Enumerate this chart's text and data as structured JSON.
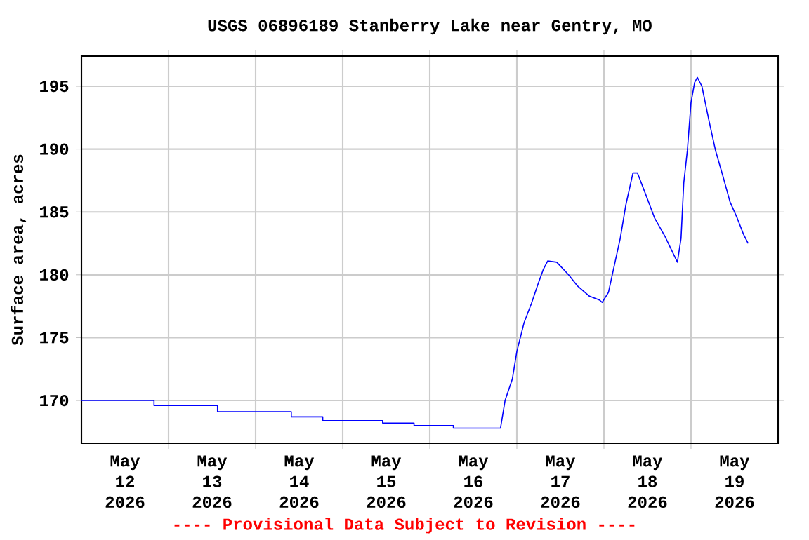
{
  "chart_data": {
    "type": "line",
    "title": "USGS 06896189 Stanberry Lake near Gentry, MO",
    "ylabel": "Surface area, acres",
    "annotations": [
      "---- Provisional Data Subject to Revision ----"
    ],
    "x": [
      "2026-05-12T00:00",
      "2026-05-12T20:00",
      "2026-05-12T20:00",
      "2026-05-13T13:30",
      "2026-05-13T13:30",
      "2026-05-14T09:50",
      "2026-05-14T09:50",
      "2026-05-14T18:30",
      "2026-05-14T18:30",
      "2026-05-15T11:00",
      "2026-05-15T11:00",
      "2026-05-15T19:40",
      "2026-05-15T19:40",
      "2026-05-16T06:30",
      "2026-05-16T06:30",
      "2026-05-16T19:30",
      "2026-05-16T20:45",
      "2026-05-16T22:45",
      "2026-05-17T00:00",
      "2026-05-17T02:00",
      "2026-05-17T04:00",
      "2026-05-17T05:45",
      "2026-05-17T07:15",
      "2026-05-17T08:30",
      "2026-05-17T11:00",
      "2026-05-17T14:15",
      "2026-05-17T16:45",
      "2026-05-17T20:00",
      "2026-05-17T22:45",
      "2026-05-17T23:30",
      "2026-05-18T01:15",
      "2026-05-18T02:45",
      "2026-05-18T04:30",
      "2026-05-18T06:00",
      "2026-05-18T08:00",
      "2026-05-18T09:15",
      "2026-05-18T11:30",
      "2026-05-18T14:00",
      "2026-05-18T16:45",
      "2026-05-18T19:15",
      "2026-05-18T20:15",
      "2026-05-18T21:15",
      "2026-05-18T22:00",
      "2026-05-18T23:00",
      "2026-05-19T00:00",
      "2026-05-19T01:00",
      "2026-05-19T01:45",
      "2026-05-19T03:00",
      "2026-05-19T05:00",
      "2026-05-19T06:45",
      "2026-05-19T08:45",
      "2026-05-19T10:45",
      "2026-05-19T12:45",
      "2026-05-19T14:30",
      "2026-05-19T15:45"
    ],
    "series": [
      {
        "color": "#0000ff",
        "values": [
          170.0,
          170.0,
          169.6,
          169.6,
          169.1,
          169.1,
          168.7,
          168.7,
          168.4,
          168.4,
          168.2,
          168.2,
          168.0,
          168.0,
          167.8,
          167.8,
          170.0,
          171.7,
          173.9,
          176.2,
          177.7,
          179.2,
          180.4,
          181.1,
          181.0,
          180.0,
          179.1,
          178.3,
          178.0,
          177.8,
          178.6,
          180.6,
          182.9,
          185.5,
          188.1,
          188.1,
          186.4,
          184.5,
          183.1,
          181.6,
          181.0,
          182.9,
          187.3,
          189.9,
          193.7,
          195.3,
          195.7,
          195.0,
          192.2,
          189.9,
          187.9,
          185.8,
          184.5,
          183.2,
          182.5
        ]
      }
    ],
    "xlim": [
      "2026-05-12T00:00",
      "2026-05-20T00:00"
    ],
    "xticks": [
      {
        "value": "2026-05-12T12:00",
        "label": "May 12 2026"
      },
      {
        "value": "2026-05-13T00:00",
        "label": null
      },
      {
        "value": "2026-05-13T12:00",
        "label": "May 13 2026"
      },
      {
        "value": "2026-05-14T00:00",
        "label": null
      },
      {
        "value": "2026-05-14T12:00",
        "label": "May 14 2026"
      },
      {
        "value": "2026-05-15T00:00",
        "label": null
      },
      {
        "value": "2026-05-15T12:00",
        "label": "May 15 2026"
      },
      {
        "value": "2026-05-16T00:00",
        "label": null
      },
      {
        "value": "2026-05-16T12:00",
        "label": "May 16 2026"
      },
      {
        "value": "2026-05-17T00:00",
        "label": null
      },
      {
        "value": "2026-05-17T12:00",
        "label": "May 17 2026"
      },
      {
        "value": "2026-05-18T00:00",
        "label": null
      },
      {
        "value": "2026-05-18T12:00",
        "label": "May 18 2026"
      },
      {
        "value": "2026-05-19T00:00",
        "label": null
      },
      {
        "value": "2026-05-19T12:00",
        "label": "May 19 2026"
      }
    ],
    "ylim": [
      166.6,
      197.4
    ],
    "yticks": [
      170,
      175,
      180,
      185,
      190,
      195
    ],
    "grid": true,
    "marker": "none",
    "line_style": "solid"
  }
}
